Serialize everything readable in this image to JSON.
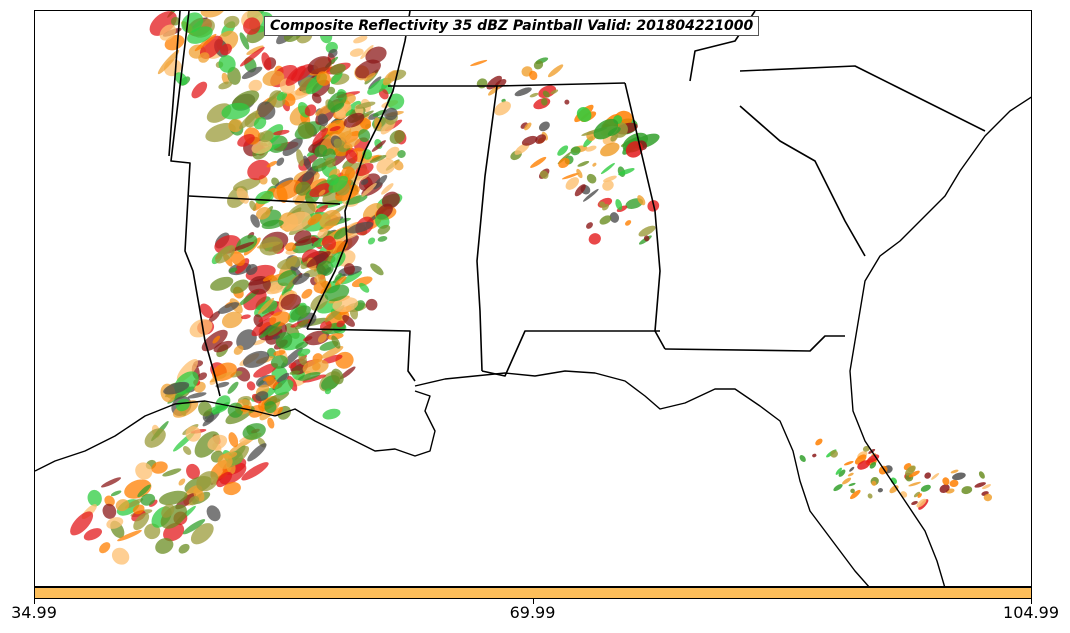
{
  "map": {
    "title": "Composite Reflectivity 35 dBZ Paintball Valid: 201804221000",
    "colorbar": {
      "color": "#fdbe5a",
      "ticks": [
        {
          "value": "34.99",
          "frac": 0.0
        },
        {
          "value": "69.99",
          "frac": 0.5
        },
        {
          "value": "104.99",
          "frac": 1.0
        }
      ]
    },
    "paintball_colors": [
      "#e31a1c",
      "#ff7f00",
      "#33a02c",
      "#8c1a1a",
      "#fdbf6f",
      "#9b9b3a",
      "#4d4d4d",
      "#2ecc40",
      "#f0a030",
      "#6b8e23"
    ]
  }
}
